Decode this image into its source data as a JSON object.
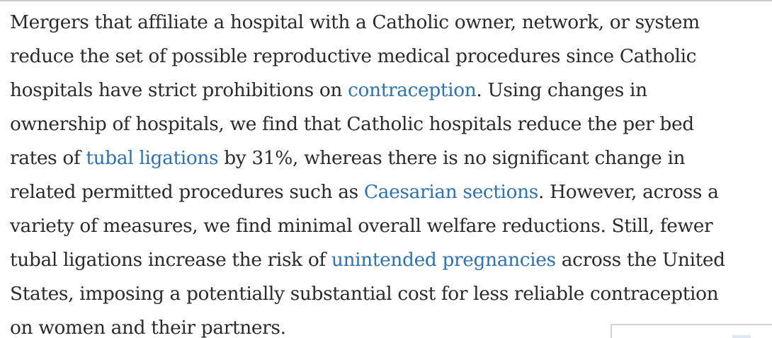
{
  "abstract": {
    "l1": "Mergers that affiliate a hospital with a Catholic owner, network, or system",
    "l2": "reduce the set of possible reproductive medical procedures since Catholic",
    "l3a": "hospitals have strict prohibitions on ",
    "l3link": "contraception",
    "l3b": ". Using changes in",
    "l4": "ownership of hospitals, we find that Catholic hospitals reduce the per bed",
    "l5a": "rates of ",
    "l5link": "tubal ligations",
    "l5b": " by 31%, whereas there is no significant change in",
    "l6a": "related permitted procedures such as ",
    "l6link": "Caesarian sections",
    "l6b": ". However, across a",
    "l7": "variety of measures, we find minimal overall welfare reductions. Still, fewer",
    "l8a": "tubal ligations increase the risk of ",
    "l8link": "unintended pregnancies",
    "l8b": " across the United",
    "l9": "States, imposing a potentially substantial cost for less reliable contraception",
    "l10": "on women and their partners."
  }
}
